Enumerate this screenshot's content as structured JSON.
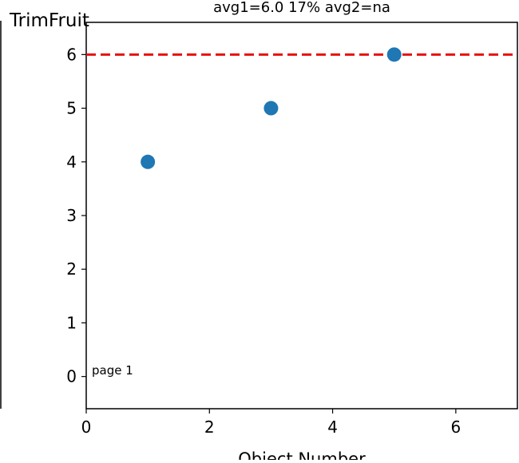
{
  "chart_data": {
    "type": "scatter",
    "title": "avg1=6.0 17% avg2=na",
    "xlabel": "Object Number",
    "ylabel": "TrimFruit",
    "xlim": [
      0,
      7
    ],
    "ylim": [
      -0.6,
      6.6
    ],
    "xticks": [
      0,
      2,
      4,
      6
    ],
    "yticks": [
      0,
      1,
      2,
      3,
      4,
      5,
      6
    ],
    "grid": false,
    "legend": "none",
    "points": [
      {
        "x": 1,
        "y": 4
      },
      {
        "x": 3,
        "y": 5
      },
      {
        "x": 5,
        "y": 6
      }
    ],
    "reference_line": {
      "y": 6.0,
      "style": "dashed"
    },
    "annotation": "page 1",
    "colors": {
      "points": "#1f77b4",
      "reference_line": "#e8110f",
      "axes": "#000000"
    }
  }
}
